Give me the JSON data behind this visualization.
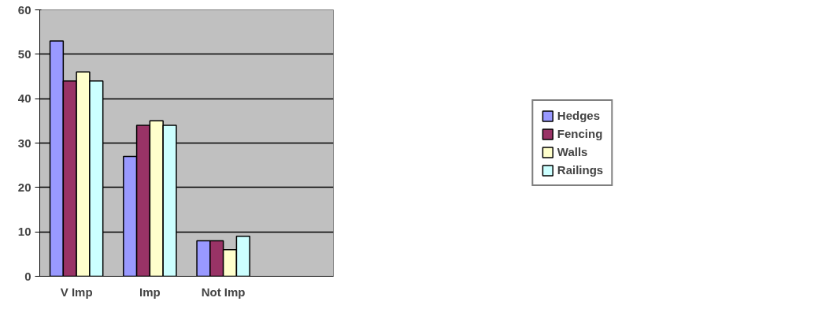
{
  "chart_data": {
    "type": "bar",
    "categories": [
      "V Imp",
      "Imp",
      "Not Imp",
      null
    ],
    "series": [
      {
        "name": "Hedges",
        "color": "#9999ff",
        "values": [
          53,
          27,
          8,
          null
        ]
      },
      {
        "name": "Fencing",
        "color": "#993366",
        "values": [
          44,
          34,
          8,
          null
        ]
      },
      {
        "name": "Walls",
        "color": "#ffffcc",
        "values": [
          46,
          35,
          6,
          null
        ]
      },
      {
        "name": "Railings",
        "color": "#ccffff",
        "values": [
          44,
          34,
          9,
          null
        ]
      }
    ],
    "ylim": [
      0,
      60
    ],
    "yticks": [
      0,
      10,
      20,
      30,
      40,
      50,
      60
    ],
    "grid": "y",
    "legend": "right"
  }
}
